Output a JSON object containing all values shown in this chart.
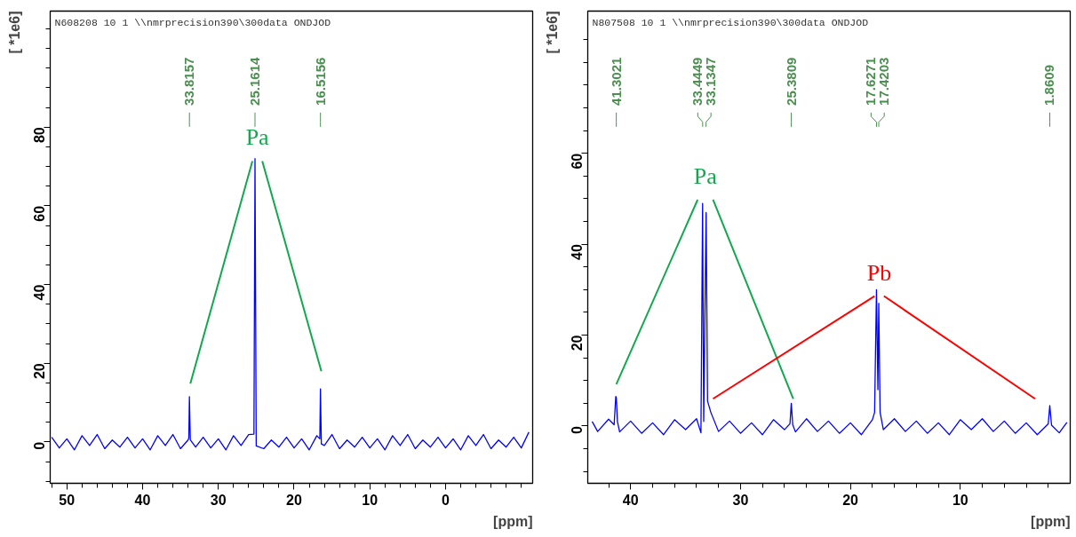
{
  "chart_data": [
    {
      "type": "line",
      "subtitle": "N608208  10  1  \\\\nmrprecision390\\300data  ONDJOD",
      "xlabel": "[ppm]",
      "ylabel": "[ *1e6]",
      "xlim": [
        52.2,
        -11.5
      ],
      "ylim": [
        -10.5,
        109.5
      ],
      "xticks": [
        50,
        40,
        30,
        20,
        10,
        0,
        {
          "value": 52,
          "label": null
        },
        {
          "value": 48,
          "label": null
        },
        {
          "value": 46,
          "label": null
        },
        {
          "value": 44,
          "label": null
        },
        {
          "value": 42,
          "label": null
        },
        {
          "value": 38,
          "label": null
        },
        {
          "value": 36,
          "label": null
        },
        {
          "value": 34,
          "label": null
        },
        {
          "value": 32,
          "label": null
        },
        {
          "value": 28,
          "label": null
        },
        {
          "value": 26,
          "label": null
        },
        {
          "value": 24,
          "label": null
        },
        {
          "value": 22,
          "label": null
        },
        {
          "value": 18,
          "label": null
        },
        {
          "value": 16,
          "label": null
        },
        {
          "value": 14,
          "label": null
        },
        {
          "value": 12,
          "label": null
        },
        {
          "value": 8,
          "label": null
        },
        {
          "value": 6,
          "label": null
        },
        {
          "value": 4,
          "label": null
        },
        {
          "value": 2,
          "label": null
        },
        {
          "value": -2,
          "label": null
        },
        {
          "value": -4,
          "label": null
        },
        {
          "value": -6,
          "label": null
        },
        {
          "value": -8,
          "label": null
        },
        {
          "value": -10,
          "label": null
        }
      ],
      "yticks": [
        0,
        20,
        40,
        60,
        80,
        {
          "value": -10,
          "label": null
        },
        {
          "value": -5,
          "label": null
        },
        {
          "value": 5,
          "label": null
        },
        {
          "value": 10,
          "label": null
        },
        {
          "value": 15,
          "label": null
        },
        {
          "value": 25,
          "label": null
        },
        {
          "value": 30,
          "label": null
        },
        {
          "value": 35,
          "label": null
        },
        {
          "value": 45,
          "label": null
        },
        {
          "value": 50,
          "label": null
        },
        {
          "value": 55,
          "label": null
        },
        {
          "value": 65,
          "label": null
        },
        {
          "value": 70,
          "label": null
        },
        {
          "value": 75,
          "label": null
        },
        {
          "value": 85,
          "label": null
        },
        {
          "value": 90,
          "label": null
        },
        {
          "value": 95,
          "label": null
        },
        {
          "value": 100,
          "label": null
        },
        {
          "value": 105,
          "label": null
        }
      ],
      "series": [
        {
          "color": "#0000ff",
          "x": [
            52,
            51,
            50,
            49,
            48,
            47,
            46,
            45,
            44,
            43,
            42,
            41,
            40,
            39,
            38,
            37,
            36,
            35,
            34,
            33.9,
            33.82,
            33.7,
            33,
            32,
            31,
            30,
            29,
            28,
            27,
            26,
            25.3,
            25.16,
            25.0,
            24,
            23,
            22,
            21,
            20,
            19,
            18,
            17,
            16.6,
            16.52,
            16.4,
            16,
            15,
            14,
            13,
            12,
            11,
            10,
            9,
            8,
            7,
            6,
            5,
            4,
            3,
            2,
            1,
            0,
            -1,
            -2,
            -3,
            -4,
            -5,
            -6,
            -7,
            -8,
            -9,
            -10,
            -11
          ],
          "values": [
            1.2,
            -1.5,
            0.8,
            -2.0,
            1.6,
            -0.9,
            1.9,
            -1.7,
            0.5,
            -1.3,
            1.2,
            -1.5,
            0.8,
            -2.0,
            1.6,
            -0.9,
            1.9,
            -1.7,
            0.5,
            1.0,
            11.5,
            0.5,
            -1.3,
            1.2,
            -1.5,
            0.8,
            -2.0,
            1.6,
            -0.9,
            1.9,
            2.0,
            72,
            -1.0,
            -1.7,
            0.5,
            -1.3,
            1.2,
            -1.5,
            0.8,
            -2.0,
            1.6,
            0.8,
            13.5,
            -0.5,
            -0.9,
            1.9,
            -1.7,
            0.5,
            -1.3,
            1.2,
            -1.5,
            0.8,
            -2.0,
            1.6,
            -0.9,
            1.9,
            -1.7,
            0.5,
            -1.3,
            1.2,
            -1.5,
            0.8,
            -2.0,
            1.6,
            -0.9,
            1.9,
            -1.7,
            0.5,
            -1.3,
            1.2,
            -1.5,
            2.5
          ]
        },
        {
          "type": "line",
          "name": "Pa",
          "color": "#12a84e",
          "x": [
            33.7,
            25.5,
            null,
            24.2,
            16.4
          ],
          "values": [
            14.8,
            71.4,
            null,
            71.4,
            18
          ]
        }
      ],
      "annotations": [
        {
          "text": "33.8157",
          "x": 33.8157
        },
        {
          "text": "25.1614",
          "x": 25.1614
        },
        {
          "text": "16.5156",
          "x": 16.5156
        }
      ]
    },
    {
      "type": "line",
      "subtitle": "N807508  10  1  \\\\nmrprecision390\\300data  ONDJOD",
      "xlabel": "[ppm]",
      "ylabel": "[ *1e6]",
      "xlim": [
        43.9,
        0
      ],
      "ylim": [
        -12.6,
        91.3
      ],
      "xticks": [
        40,
        30,
        20,
        10,
        {
          "value": 42,
          "label": null
        },
        {
          "value": 38,
          "label": null
        },
        {
          "value": 36,
          "label": null
        },
        {
          "value": 34,
          "label": null
        },
        {
          "value": 32,
          "label": null
        },
        {
          "value": 28,
          "label": null
        },
        {
          "value": 26,
          "label": null
        },
        {
          "value": 24,
          "label": null
        },
        {
          "value": 22,
          "label": null
        },
        {
          "value": 18,
          "label": null
        },
        {
          "value": 16,
          "label": null
        },
        {
          "value": 14,
          "label": null
        },
        {
          "value": 12,
          "label": null
        },
        {
          "value": 8,
          "label": null
        },
        {
          "value": 6,
          "label": null
        },
        {
          "value": 4,
          "label": null
        },
        {
          "value": 2,
          "label": null
        }
      ],
      "yticks": [
        0,
        20,
        40,
        60,
        {
          "value": -10,
          "label": null
        },
        {
          "value": -5,
          "label": null
        },
        {
          "value": 5,
          "label": null
        },
        {
          "value": 10,
          "label": null
        },
        {
          "value": 15,
          "label": null
        },
        {
          "value": 25,
          "label": null
        },
        {
          "value": 30,
          "label": null
        },
        {
          "value": 35,
          "label": null
        },
        {
          "value": 45,
          "label": null
        },
        {
          "value": 50,
          "label": null
        },
        {
          "value": 55,
          "label": null
        },
        {
          "value": 65,
          "label": null
        },
        {
          "value": 70,
          "label": null
        },
        {
          "value": 75,
          "label": null
        },
        {
          "value": 80,
          "label": null
        },
        {
          "value": 85,
          "label": null
        }
      ],
      "series": [
        {
          "color": "#0000ff",
          "x": [
            43.5,
            43,
            42,
            41.5,
            41.35,
            41.3,
            41.2,
            41,
            40,
            39,
            38,
            37,
            36,
            35,
            34,
            33.6,
            33.45,
            33.35,
            33.13,
            33.0,
            32.7,
            32,
            31,
            30,
            29,
            28,
            27,
            26,
            25.5,
            25.38,
            25.25,
            25,
            24,
            23,
            22,
            21,
            20,
            19,
            18,
            17.8,
            17.63,
            17.5,
            17.42,
            17.3,
            17,
            16,
            15,
            14,
            13,
            12,
            11,
            10,
            9,
            8,
            7,
            6,
            5,
            4,
            3,
            2.0,
            1.86,
            1.7,
            1,
            0.3
          ],
          "values": [
            1.0,
            -1.2,
            1.5,
            0.3,
            6.5,
            6.3,
            1.0,
            -1.3,
            1.1,
            -1.6,
            0.7,
            -1.9,
            1.4,
            -0.8,
            1.6,
            -1.5,
            49,
            1.0,
            47,
            5.5,
            3.0,
            -1.2,
            1.1,
            -1.6,
            0.7,
            -1.9,
            1.4,
            -0.8,
            0.5,
            5.0,
            0.3,
            -1.3,
            1.6,
            -1.2,
            1.1,
            -1.6,
            0.7,
            -1.9,
            1.4,
            3.0,
            30,
            8,
            27,
            3.0,
            -0.8,
            1.6,
            -1.2,
            1.1,
            -1.6,
            0.7,
            -1.9,
            1.4,
            -0.8,
            1.6,
            -1.2,
            1.1,
            -1.6,
            0.7,
            -1.9,
            0.5,
            4.5,
            0.2,
            -1.5,
            0.8
          ]
        },
        {
          "type": "line",
          "name": "Pa",
          "color": "#12a84e",
          "x": [
            41.3,
            33.9,
            null,
            32.5,
            25.2
          ],
          "values": [
            9.2,
            49.8,
            null,
            49.8,
            6.0
          ]
        },
        {
          "type": "line",
          "name": "Pb",
          "color": "#ff0000",
          "x": [
            32.5,
            17.8,
            null,
            16.95,
            3.2
          ],
          "values": [
            6.0,
            28.6,
            null,
            28.6,
            6.0
          ]
        }
      ],
      "annotations": [
        {
          "text": "41.3021",
          "x": 41.3021
        },
        {
          "text": "33.4449",
          "x": 33.4449
        },
        {
          "text": "33.1347",
          "x": 33.1347
        },
        {
          "text": "25.3809",
          "x": 25.3809
        },
        {
          "text": "17.6271",
          "x": 17.6271
        },
        {
          "text": "17.4203",
          "x": 17.4203
        },
        {
          "text": "1.8609",
          "x": 1.8609
        }
      ]
    }
  ]
}
